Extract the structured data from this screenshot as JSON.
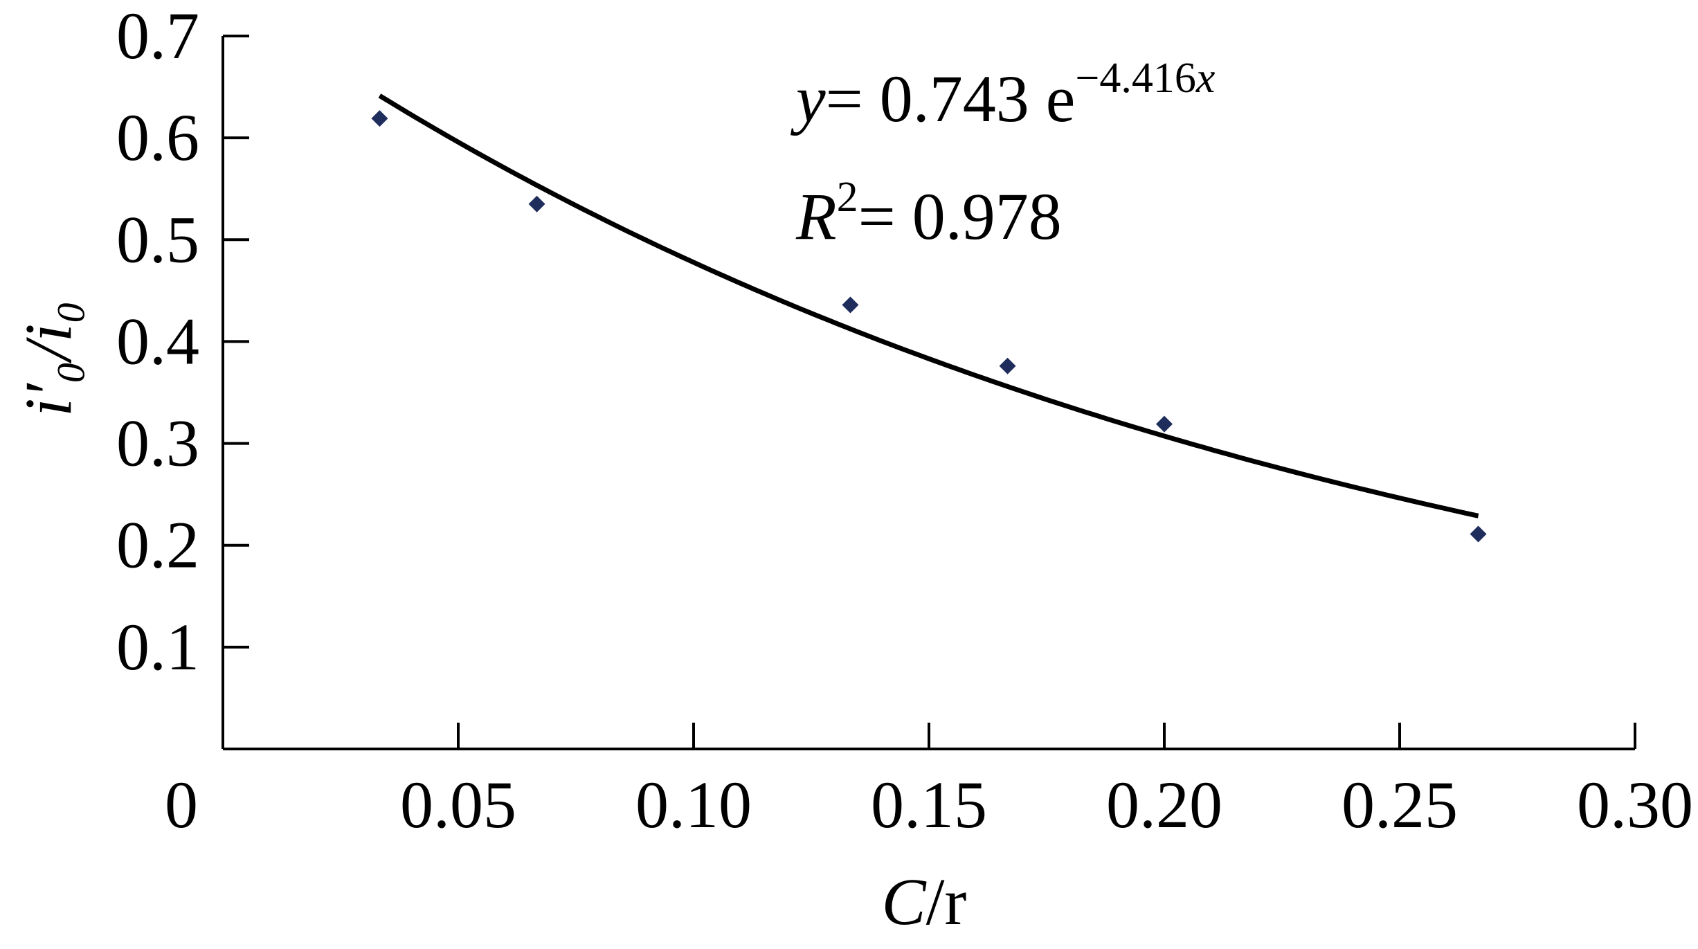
{
  "chart_data": {
    "type": "scatter",
    "xlabel_main": "C",
    "xlabel_suffix": "/r",
    "ylabel": "i′₀/i₀",
    "xlim": [
      0,
      0.3
    ],
    "ylim": [
      0,
      0.7
    ],
    "x_ticks": [
      0,
      0.05,
      0.1,
      0.15,
      0.2,
      0.25,
      0.3
    ],
    "x_tick_labels": [
      "0",
      "0.05",
      "0.10",
      "0.15",
      "0.20",
      "0.25",
      "0.30"
    ],
    "y_ticks": [
      0.1,
      0.2,
      0.3,
      0.4,
      0.5,
      0.6,
      0.7
    ],
    "y_tick_labels": [
      "0.1",
      "0.2",
      "0.3",
      "0.4",
      "0.5",
      "0.6",
      "0.7"
    ],
    "grid": false,
    "series": [
      {
        "type": "scatter",
        "marker": "diamond",
        "color": "#1f2d5c",
        "x": [
          0.0333,
          0.0667,
          0.1333,
          0.1667,
          0.2,
          0.2667
        ],
        "y": [
          0.619,
          0.535,
          0.436,
          0.376,
          0.319,
          0.211
        ]
      },
      {
        "type": "line",
        "color": "#000000",
        "fit": {
          "kind": "exponential",
          "a": 0.743,
          "b": -4.416,
          "x_from": 0.0333,
          "x_to": 0.2667
        }
      }
    ],
    "annotations": {
      "equation": {
        "y_var": "y",
        "eq": "= 0.743 e",
        "exponent": "−4.416",
        "exp_var": "x"
      },
      "r2": {
        "var": "R",
        "sup": "2",
        "eq": "= 0.978"
      }
    }
  }
}
